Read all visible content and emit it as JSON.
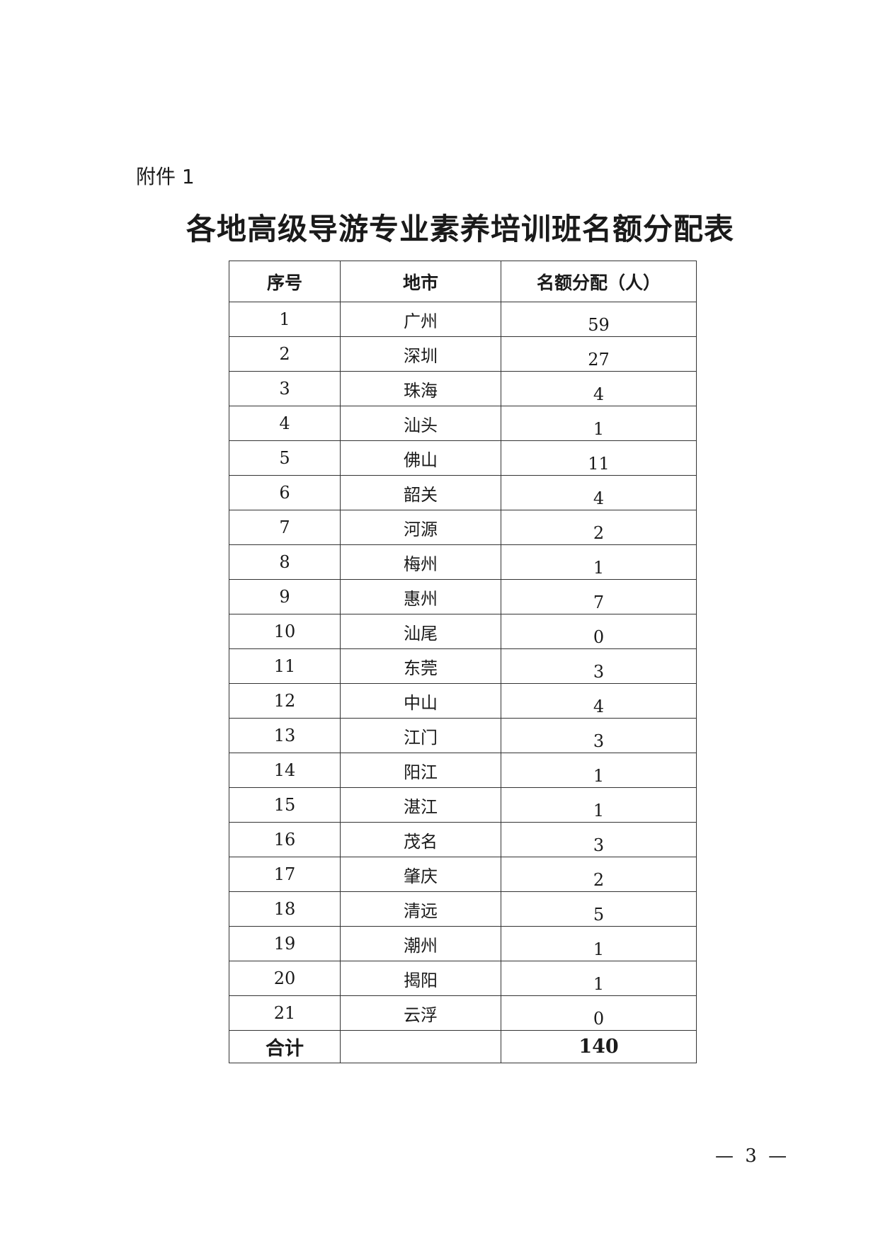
{
  "attachment_label": "附件 1",
  "title": "各地高级导游专业素养培训班名额分配表",
  "table": {
    "headers": [
      "序号",
      "地市",
      "名额分配（人）"
    ],
    "rows": [
      {
        "no": "1",
        "city": "广州",
        "quota": "59"
      },
      {
        "no": "2",
        "city": "深圳",
        "quota": "27"
      },
      {
        "no": "3",
        "city": "珠海",
        "quota": "4"
      },
      {
        "no": "4",
        "city": "汕头",
        "quota": "1"
      },
      {
        "no": "5",
        "city": "佛山",
        "quota": "11"
      },
      {
        "no": "6",
        "city": "韶关",
        "quota": "4"
      },
      {
        "no": "7",
        "city": "河源",
        "quota": "2"
      },
      {
        "no": "8",
        "city": "梅州",
        "quota": "1"
      },
      {
        "no": "9",
        "city": "惠州",
        "quota": "7"
      },
      {
        "no": "10",
        "city": "汕尾",
        "quota": "0"
      },
      {
        "no": "11",
        "city": "东莞",
        "quota": "3"
      },
      {
        "no": "12",
        "city": "中山",
        "quota": "4"
      },
      {
        "no": "13",
        "city": "江门",
        "quota": "3"
      },
      {
        "no": "14",
        "city": "阳江",
        "quota": "1"
      },
      {
        "no": "15",
        "city": "湛江",
        "quota": "1"
      },
      {
        "no": "16",
        "city": "茂名",
        "quota": "3"
      },
      {
        "no": "17",
        "city": "肇庆",
        "quota": "2"
      },
      {
        "no": "18",
        "city": "清远",
        "quota": "5"
      },
      {
        "no": "19",
        "city": "潮州",
        "quota": "1"
      },
      {
        "no": "20",
        "city": "揭阳",
        "quota": "1"
      },
      {
        "no": "21",
        "city": "云浮",
        "quota": "0"
      }
    ],
    "total": {
      "label": "合计",
      "city": "",
      "quota": "140"
    }
  },
  "page_number": "— 3 —"
}
